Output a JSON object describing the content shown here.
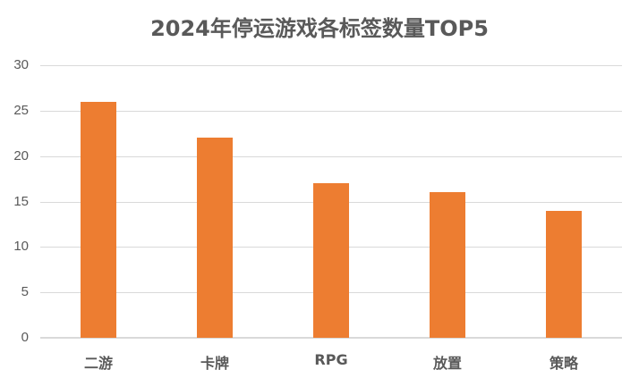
{
  "chart_data": {
    "type": "bar",
    "title": "2024年停运游戏各标签数量TOP5",
    "categories": [
      "二游",
      "卡牌",
      "RPG",
      "放置",
      "策略"
    ],
    "values": [
      26,
      22,
      17,
      16,
      14
    ],
    "xlabel": "",
    "ylabel": "",
    "ylim": [
      0,
      30
    ],
    "yticks": [
      0,
      5,
      10,
      15,
      20,
      25,
      30
    ],
    "grid": true,
    "legend": null,
    "colors": {
      "bar": "#ed7d31",
      "grid": "#d9d9d9",
      "text": "#595959"
    }
  }
}
